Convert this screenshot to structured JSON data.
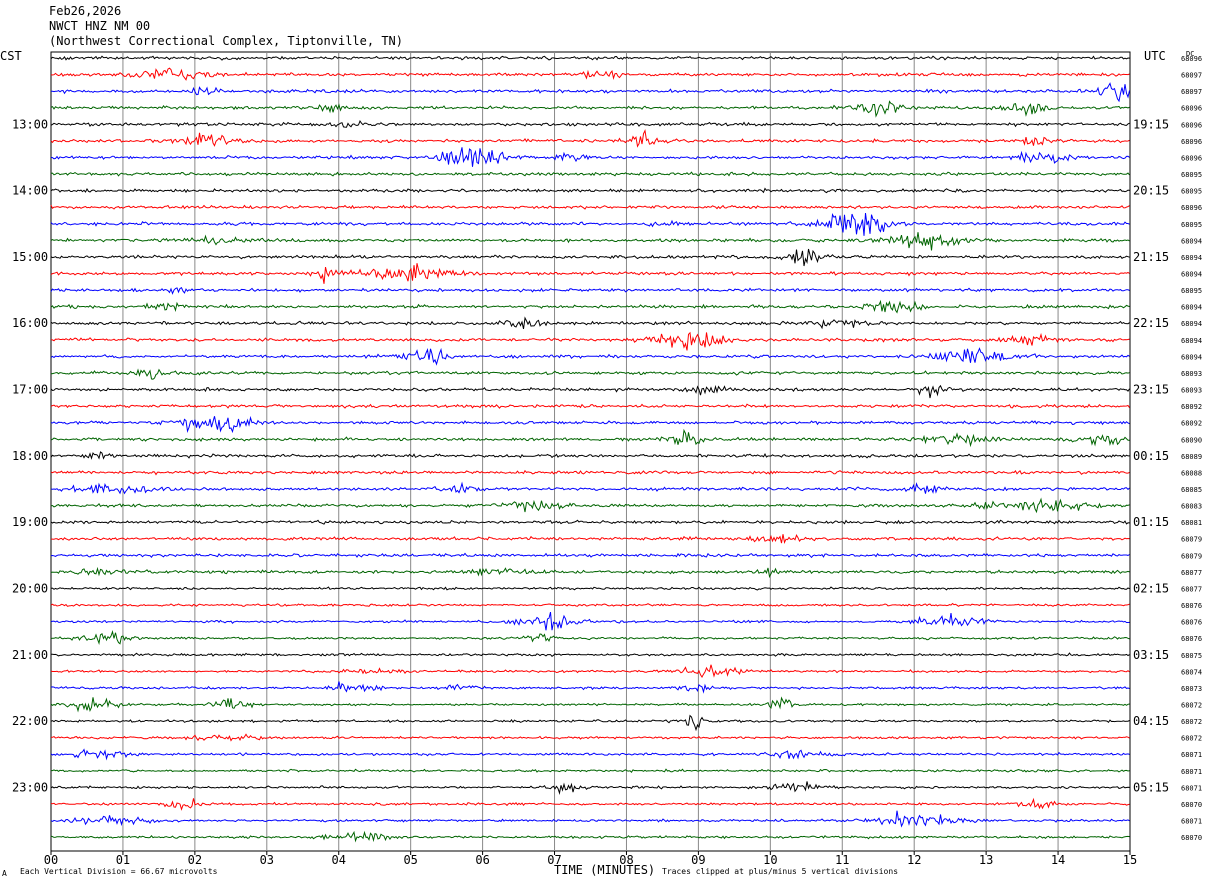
{
  "header": {
    "date": "Feb26,2026",
    "station": "NWCT HNZ NM 00",
    "location": "(Northwest Correctional Complex, Tiptonville, TN)"
  },
  "left_zone": "CST",
  "right_zone": "UTC",
  "dc_label": "DC",
  "footer": {
    "scale_mark": "A",
    "scale": "Each Vertical Division =   66.67 microvolts",
    "xlabel": "TIME (MINUTES)",
    "clip_note": "Traces clipped at plus/minus 5 vertical divisions"
  },
  "chart_data": {
    "type": "line",
    "title": "",
    "xlabel": "TIME (MINUTES)",
    "xlim": [
      0,
      15
    ],
    "x_ticks": [
      "00",
      "01",
      "02",
      "03",
      "04",
      "05",
      "06",
      "07",
      "08",
      "09",
      "10",
      "11",
      "12",
      "13",
      "14",
      "15"
    ],
    "rows": 48,
    "minutes_per_row": 15,
    "trace_colors": [
      "#000000",
      "#ff0000",
      "#0000ff",
      "#006400"
    ],
    "left_hour_labels": [
      "13:00",
      "14:00",
      "15:00",
      "16:00",
      "17:00",
      "18:00",
      "19:00",
      "20:00",
      "21:00",
      "22:00",
      "23:00"
    ],
    "right_hour_labels": [
      "19:15",
      "20:15",
      "21:15",
      "22:15",
      "23:15",
      "00:15",
      "01:15",
      "02:15",
      "03:15",
      "04:15",
      "05:15"
    ],
    "dc_offsets": [
      "68096",
      "68097",
      "68097",
      "68096",
      "68096",
      "68096",
      "68096",
      "68095",
      "68095",
      "68096",
      "68095",
      "68094",
      "68094",
      "68094",
      "68095",
      "68094",
      "68094",
      "68094",
      "68094",
      "68093",
      "68093",
      "68092",
      "68092",
      "68090",
      "68089",
      "68088",
      "68085",
      "68083",
      "68081",
      "68079",
      "68079",
      "68077",
      "68077",
      "68076",
      "68076",
      "68076",
      "68075",
      "68074",
      "68073",
      "68072",
      "68072",
      "68072",
      "68071",
      "68071",
      "68071",
      "68070",
      "68071",
      "68070"
    ]
  }
}
